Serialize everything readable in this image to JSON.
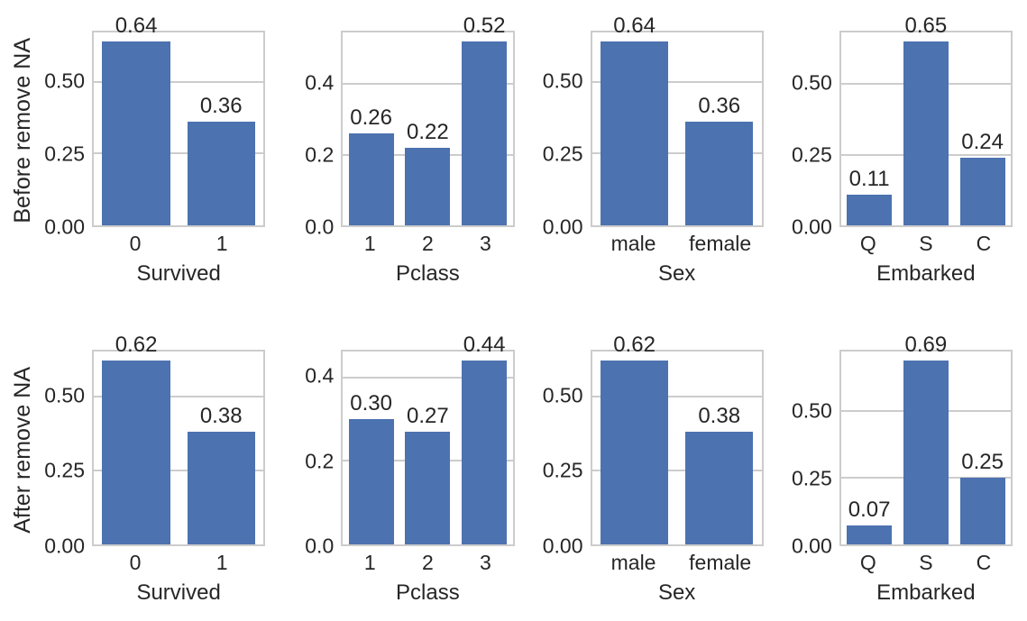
{
  "figure": {
    "background": "#ffffff",
    "bar_color": "#4c72b0",
    "grid_color": "#cccccc",
    "text_color": "#262626"
  },
  "chart_data": {
    "type": "bar",
    "title": "",
    "legend": null,
    "grid": true,
    "rows": [
      {
        "ylabel": "Before remove NA",
        "charts": [
          {
            "xlabel": "Survived",
            "categories": [
              "0",
              "1"
            ],
            "values": [
              0.64,
              0.36
            ],
            "value_labels": [
              "0.64",
              "0.36"
            ],
            "yticks": [
              0,
              0.25,
              0.5
            ],
            "ytick_labels": [
              "0.00",
              "0.25",
              "0.50"
            ],
            "ylim": [
              0,
              0.672
            ]
          },
          {
            "xlabel": "Pclass",
            "categories": [
              "1",
              "2",
              "3"
            ],
            "values": [
              0.26,
              0.22,
              0.52
            ],
            "value_labels": [
              "0.26",
              "0.22",
              "0.52"
            ],
            "yticks": [
              0,
              0.2,
              0.4
            ],
            "ytick_labels": [
              "0.0",
              "0.2",
              "0.4"
            ],
            "ylim": [
              0,
              0.546
            ]
          },
          {
            "xlabel": "Sex",
            "categories": [
              "male",
              "female"
            ],
            "values": [
              0.64,
              0.36
            ],
            "value_labels": [
              "0.64",
              "0.36"
            ],
            "yticks": [
              0,
              0.25,
              0.5
            ],
            "ytick_labels": [
              "0.00",
              "0.25",
              "0.50"
            ],
            "ylim": [
              0,
              0.672
            ]
          },
          {
            "xlabel": "Embarked",
            "categories": [
              "Q",
              "S",
              "C"
            ],
            "values": [
              0.11,
              0.65,
              0.24
            ],
            "value_labels": [
              "0.11",
              "0.65",
              "0.24"
            ],
            "yticks": [
              0,
              0.25,
              0.5
            ],
            "ytick_labels": [
              "0.00",
              "0.25",
              "0.50"
            ],
            "ylim": [
              0,
              0.6825
            ]
          }
        ]
      },
      {
        "ylabel": "After remove NA",
        "charts": [
          {
            "xlabel": "Survived",
            "categories": [
              "0",
              "1"
            ],
            "values": [
              0.62,
              0.38
            ],
            "value_labels": [
              "0.62",
              "0.38"
            ],
            "yticks": [
              0,
              0.25,
              0.5
            ],
            "ytick_labels": [
              "0.00",
              "0.25",
              "0.50"
            ],
            "ylim": [
              0,
              0.651
            ]
          },
          {
            "xlabel": "Pclass",
            "categories": [
              "1",
              "2",
              "3"
            ],
            "values": [
              0.3,
              0.27,
              0.44
            ],
            "value_labels": [
              "0.30",
              "0.27",
              "0.44"
            ],
            "yticks": [
              0,
              0.2,
              0.4
            ],
            "ytick_labels": [
              "0.0",
              "0.2",
              "0.4"
            ],
            "ylim": [
              0,
              0.462
            ]
          },
          {
            "xlabel": "Sex",
            "categories": [
              "male",
              "female"
            ],
            "values": [
              0.62,
              0.38
            ],
            "value_labels": [
              "0.62",
              "0.38"
            ],
            "yticks": [
              0,
              0.25,
              0.5
            ],
            "ytick_labels": [
              "0.00",
              "0.25",
              "0.50"
            ],
            "ylim": [
              0,
              0.651
            ]
          },
          {
            "xlabel": "Embarked",
            "categories": [
              "Q",
              "S",
              "C"
            ],
            "values": [
              0.07,
              0.69,
              0.25
            ],
            "value_labels": [
              "0.07",
              "0.69",
              "0.25"
            ],
            "yticks": [
              0,
              0.25,
              0.5
            ],
            "ytick_labels": [
              "0.00",
              "0.25",
              "0.50"
            ],
            "ylim": [
              0,
              0.7245
            ]
          }
        ]
      }
    ]
  }
}
